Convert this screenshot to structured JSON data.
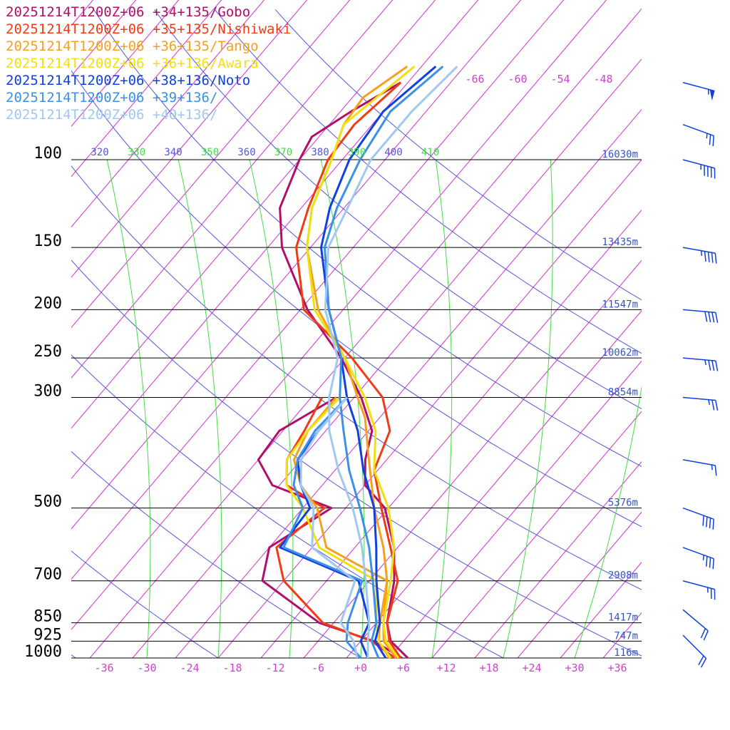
{
  "legend": [
    {
      "label": "20251214T1200Z+06 +34+135/Gobo",
      "color": "#b0106a"
    },
    {
      "label": "20251214T1200Z+06 +35+135/Nishiwaki",
      "color": "#f03c14"
    },
    {
      "label": "20251214T1200Z+06 +36+135/Tango",
      "color": "#f5a020"
    },
    {
      "label": "20251214T1200Z+06 +36+136/Awara",
      "color": "#f0e010"
    },
    {
      "label": "20251214T1200Z+06 +38+136/Noto",
      "color": "#1040e0"
    },
    {
      "label": "20251214T1200Z+06 +39+136/",
      "color": "#3c90e8"
    },
    {
      "label": "20251214T1200Z+06 +40+136/",
      "color": "#a0c8f0"
    }
  ],
  "chart_data": {
    "type": "line",
    "chart_kind": "skew-T log-p sounding",
    "y_axis": {
      "unit": "hPa",
      "scale": "log",
      "range": [
        1000,
        100
      ],
      "tick_labels": [
        "100",
        "150",
        "200",
        "250",
        "300",
        "500",
        "700",
        "850",
        "925",
        "1000"
      ]
    },
    "x_axis": {
      "unit": "degC",
      "range": [
        -40,
        40
      ],
      "tick_labels": [
        "-36",
        "-30",
        "-24",
        "-18",
        "-12",
        "-6",
        "+0",
        "+6",
        "+12",
        "+18",
        "+24",
        "+30",
        "+36"
      ]
    },
    "height_labels": [
      {
        "p": 100,
        "label": "16030m"
      },
      {
        "p": 150,
        "label": "13435m"
      },
      {
        "p": 200,
        "label": "11547m"
      },
      {
        "p": 250,
        "label": "10062m"
      },
      {
        "p": 300,
        "label": "8854m"
      },
      {
        "p": 500,
        "label": "5376m"
      },
      {
        "p": 700,
        "label": "2908m"
      },
      {
        "p": 850,
        "label": "1417m"
      },
      {
        "p": 925,
        "label": "747m"
      },
      {
        "p": 1000,
        "label": "116m"
      }
    ],
    "theta_e_labels": [
      "320",
      "330",
      "340",
      "350",
      "360",
      "370",
      "380",
      "390",
      "400",
      "410"
    ],
    "upper_temp_labels": [
      "-66",
      "-60",
      "-54",
      "-48"
    ],
    "isotherms_degC_step": 6,
    "series": [
      {
        "name": "20251214T1200Z+06 +34+135/Gobo",
        "color": "#b0106a",
        "temperature": [
          [
            1000,
            6.6
          ],
          [
            925,
            2.2
          ],
          [
            850,
            -0.5
          ],
          [
            700,
            -4.5
          ],
          [
            600,
            -8.5
          ],
          [
            500,
            -14.5
          ],
          [
            450,
            -20
          ],
          [
            400,
            -23
          ],
          [
            350,
            -25.5
          ],
          [
            300,
            -31
          ],
          [
            250,
            -38.5
          ],
          [
            200,
            -49
          ],
          [
            150,
            -60
          ],
          [
            125,
            -65
          ],
          [
            100,
            -68
          ],
          [
            90,
            -69
          ],
          [
            80,
            -66.5
          ],
          [
            70,
            -63
          ]
        ],
        "dewpoint": [
          [
            1000,
            5.8
          ],
          [
            925,
            -0.2
          ],
          [
            850,
            -10
          ],
          [
            700,
            -23
          ],
          [
            600,
            -26
          ],
          [
            500,
            -22
          ],
          [
            450,
            -33
          ],
          [
            400,
            -38
          ],
          [
            350,
            -38.5
          ],
          [
            300,
            -34.5
          ]
        ]
      },
      {
        "name": "20251214T1200Z+06 +35+135/Nishiwaki",
        "color": "#f03c14",
        "temperature": [
          [
            1000,
            5.6
          ],
          [
            925,
            2
          ],
          [
            850,
            -0.5
          ],
          [
            700,
            -4
          ],
          [
            600,
            -9
          ],
          [
            500,
            -15
          ],
          [
            420,
            -20.5
          ],
          [
            350,
            -23
          ],
          [
            300,
            -28
          ],
          [
            250,
            -37
          ],
          [
            200,
            -49.5
          ],
          [
            150,
            -58
          ],
          [
            125,
            -61
          ],
          [
            100,
            -64
          ],
          [
            85,
            -64.5
          ],
          [
            70,
            -63
          ]
        ],
        "dewpoint": [
          [
            1000,
            4.8
          ],
          [
            925,
            -0.5
          ],
          [
            850,
            -9.5
          ],
          [
            700,
            -20
          ],
          [
            600,
            -25
          ],
          [
            500,
            -23
          ],
          [
            450,
            -31
          ],
          [
            400,
            -34
          ],
          [
            350,
            -35
          ],
          [
            300,
            -36.5
          ]
        ]
      },
      {
        "name": "20251214T1200Z+06 +36+135/Tango",
        "color": "#f5a020",
        "temperature": [
          [
            1000,
            5
          ],
          [
            925,
            1.2
          ],
          [
            850,
            -1
          ],
          [
            700,
            -5.5
          ],
          [
            600,
            -10
          ],
          [
            500,
            -16
          ],
          [
            400,
            -22.5
          ],
          [
            330,
            -28
          ],
          [
            300,
            -31.5
          ],
          [
            250,
            -38
          ],
          [
            200,
            -47.5
          ],
          [
            150,
            -56.5
          ],
          [
            125,
            -60.5
          ],
          [
            100,
            -63.5
          ],
          [
            85,
            -66
          ],
          [
            75,
            -66.5
          ],
          [
            65,
            -64
          ]
        ],
        "dewpoint": [
          [
            1000,
            4
          ],
          [
            925,
            0.5
          ],
          [
            850,
            -1.5
          ],
          [
            700,
            -5.5
          ],
          [
            600,
            -18
          ],
          [
            500,
            -24
          ],
          [
            450,
            -29
          ],
          [
            400,
            -33
          ],
          [
            350,
            -34.5
          ],
          [
            300,
            -34.5
          ]
        ]
      },
      {
        "name": "20251214T1200Z+06 +36+136/Awara",
        "color": "#f0e010",
        "temperature": [
          [
            1000,
            5.3
          ],
          [
            925,
            1.5
          ],
          [
            850,
            -1
          ],
          [
            700,
            -5
          ],
          [
            600,
            -8.5
          ],
          [
            500,
            -14
          ],
          [
            420,
            -20.5
          ],
          [
            350,
            -25
          ],
          [
            300,
            -30.5
          ],
          [
            250,
            -38
          ],
          [
            200,
            -48
          ],
          [
            150,
            -56.5
          ],
          [
            125,
            -60.5
          ],
          [
            100,
            -63.5
          ],
          [
            85,
            -66
          ],
          [
            65,
            -63
          ]
        ],
        "dewpoint": [
          [
            1000,
            4.2
          ],
          [
            925,
            0.5
          ],
          [
            850,
            -2
          ],
          [
            700,
            -7
          ],
          [
            600,
            -19
          ],
          [
            500,
            -26
          ],
          [
            450,
            -31
          ],
          [
            400,
            -34
          ],
          [
            350,
            -34.5
          ],
          [
            300,
            -34
          ]
        ]
      },
      {
        "name": "20251214T1200Z+06 +38+136/Noto",
        "color": "#1040e0",
        "temperature": [
          [
            1000,
            3.5
          ],
          [
            925,
            0
          ],
          [
            850,
            -1.5
          ],
          [
            700,
            -7
          ],
          [
            600,
            -11
          ],
          [
            500,
            -16
          ],
          [
            420,
            -22
          ],
          [
            350,
            -27.5
          ],
          [
            300,
            -33
          ],
          [
            250,
            -38.5
          ],
          [
            200,
            -46
          ],
          [
            150,
            -54.5
          ],
          [
            125,
            -58
          ],
          [
            100,
            -61
          ],
          [
            80,
            -62
          ],
          [
            65,
            -60
          ]
        ],
        "dewpoint": [
          [
            1000,
            1
          ],
          [
            925,
            -2
          ],
          [
            850,
            -3
          ],
          [
            700,
            -9.5
          ],
          [
            600,
            -24.5
          ],
          [
            500,
            -25
          ],
          [
            450,
            -29
          ],
          [
            400,
            -32.5
          ],
          [
            350,
            -33
          ],
          [
            300,
            -33
          ]
        ]
      },
      {
        "name": "20251214T1200Z+06 +39+136/",
        "color": "#3c90e8",
        "temperature": [
          [
            1000,
            2.5
          ],
          [
            925,
            -0.5
          ],
          [
            850,
            -2
          ],
          [
            700,
            -7.5
          ],
          [
            600,
            -12
          ],
          [
            500,
            -18
          ],
          [
            420,
            -24
          ],
          [
            350,
            -29.5
          ],
          [
            300,
            -34
          ],
          [
            250,
            -38.5
          ],
          [
            200,
            -46
          ],
          [
            150,
            -54
          ],
          [
            125,
            -57
          ],
          [
            100,
            -59.5
          ],
          [
            80,
            -61
          ],
          [
            65,
            -59
          ]
        ],
        "dewpoint": [
          [
            1000,
            0
          ],
          [
            925,
            -4
          ],
          [
            850,
            -6
          ],
          [
            700,
            -9
          ],
          [
            600,
            -24
          ],
          [
            500,
            -26
          ],
          [
            450,
            -30
          ],
          [
            400,
            -32.5
          ],
          [
            350,
            -33.5
          ],
          [
            300,
            -33
          ]
        ]
      },
      {
        "name": "20251214T1200Z+06 +40+136/",
        "color": "#a0c8f0",
        "temperature": [
          [
            1000,
            1
          ],
          [
            925,
            -1
          ],
          [
            850,
            -3
          ],
          [
            700,
            -8.5
          ],
          [
            600,
            -13
          ],
          [
            500,
            -19
          ],
          [
            420,
            -25.5
          ],
          [
            350,
            -31.5
          ],
          [
            300,
            -35.5
          ],
          [
            250,
            -39
          ],
          [
            200,
            -46.5
          ],
          [
            150,
            -53.5
          ],
          [
            125,
            -55.5
          ],
          [
            100,
            -58
          ],
          [
            80,
            -58
          ],
          [
            65,
            -57
          ]
        ],
        "dewpoint": [
          [
            1000,
            -0.5
          ],
          [
            925,
            -3
          ],
          [
            850,
            -7
          ],
          [
            700,
            -10
          ],
          [
            600,
            -20
          ],
          [
            500,
            -24.5
          ],
          [
            450,
            -29
          ],
          [
            400,
            -32
          ],
          [
            350,
            -33
          ],
          [
            300,
            -33
          ]
        ]
      }
    ],
    "wind_barbs": [
      {
        "p": 70,
        "dir_deg": 285,
        "speed_kt": 55
      },
      {
        "p": 85,
        "dir_deg": 290,
        "speed_kt": 25
      },
      {
        "p": 100,
        "dir_deg": 285,
        "speed_kt": 45
      },
      {
        "p": 150,
        "dir_deg": 280,
        "speed_kt": 45
      },
      {
        "p": 200,
        "dir_deg": 275,
        "speed_kt": 40
      },
      {
        "p": 250,
        "dir_deg": 275,
        "speed_kt": 35
      },
      {
        "p": 300,
        "dir_deg": 275,
        "speed_kt": 25
      },
      {
        "p": 400,
        "dir_deg": 280,
        "speed_kt": 15
      },
      {
        "p": 500,
        "dir_deg": 290,
        "speed_kt": 40
      },
      {
        "p": 600,
        "dir_deg": 290,
        "speed_kt": 35
      },
      {
        "p": 700,
        "dir_deg": 285,
        "speed_kt": 25
      },
      {
        "p": 800,
        "dir_deg": 310,
        "speed_kt": 20
      },
      {
        "p": 900,
        "dir_deg": 315,
        "speed_kt": 20
      }
    ]
  }
}
